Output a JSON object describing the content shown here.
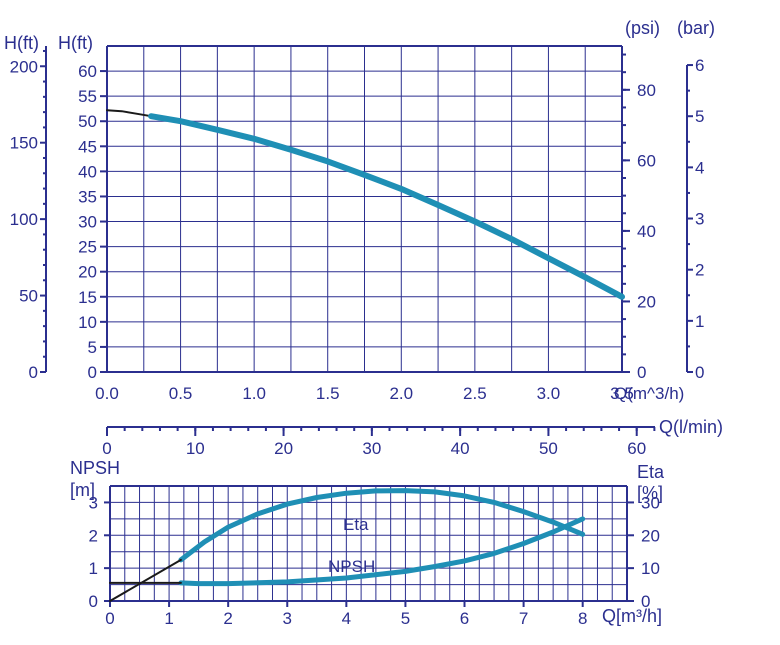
{
  "colors": {
    "axis": "#2b2f8f",
    "curve": "#1f8fb5",
    "extension": "#1a1a1a"
  },
  "chart_data": [
    {
      "type": "line",
      "title": "",
      "xlabel": "Q(m^3/h)",
      "x_ticks": [
        "0.0",
        "0.5",
        "1.0",
        "1.5",
        "2.0",
        "2.5",
        "3.0",
        "3.5"
      ],
      "xlim": [
        0,
        3.5
      ],
      "ylabel_left_ft": "H(ft)",
      "ylabel_left_ft_ticks": [
        "0",
        "50",
        "100",
        "150",
        "200"
      ],
      "ylabel_left_ft2": "H(ft)",
      "ylabel_left_ft2_ticks": [
        "0",
        "5",
        "10",
        "15",
        "20",
        "25",
        "30",
        "35",
        "40",
        "45",
        "50",
        "55",
        "60"
      ],
      "ylim_ft": [
        0,
        65
      ],
      "ylabel_psi": "(psi)",
      "y_psi_ticks": [
        "0",
        "20",
        "40",
        "60",
        "80"
      ],
      "ylabel_bar": "(bar)",
      "y_bar_ticks": [
        "0",
        "1",
        "2",
        "3",
        "4",
        "5",
        "6"
      ],
      "secondary_x_label": "Q(l/min)",
      "secondary_x_ticks": [
        "0",
        "10",
        "20",
        "30",
        "40",
        "50",
        "60"
      ],
      "series": [
        {
          "role": "extension",
          "x": [
            0.0,
            0.1,
            0.2,
            0.3
          ],
          "y": [
            52.2,
            52.0,
            51.5,
            51.0
          ]
        },
        {
          "role": "curve",
          "x": [
            0.3,
            0.5,
            0.75,
            1.0,
            1.25,
            1.5,
            1.75,
            2.0,
            2.25,
            2.5,
            2.75,
            3.0,
            3.25,
            3.5
          ],
          "y": [
            51.0,
            50.0,
            48.3,
            46.5,
            44.3,
            42.0,
            39.3,
            36.5,
            33.3,
            30.0,
            26.5,
            22.7,
            18.9,
            15.0
          ]
        }
      ]
    },
    {
      "type": "line",
      "title": "",
      "xlabel": "Q[m³/h]",
      "x_ticks": [
        "0",
        "1",
        "2",
        "3",
        "4",
        "5",
        "6",
        "7",
        "8"
      ],
      "xlim": [
        0,
        8
      ],
      "ylabel_left": "NPSH\n[m]",
      "ylabel_left_line1": "NPSH",
      "ylabel_left_line2": "[m]",
      "y_left_ticks": [
        "0",
        "1",
        "2",
        "3"
      ],
      "ylim_left": [
        0,
        3.5
      ],
      "ylabel_right_line1": "Eta",
      "ylabel_right_line2": "[%]",
      "y_right_ticks": [
        "0",
        "10",
        "20",
        "30"
      ],
      "ylim_right": [
        0,
        35
      ],
      "annotations": [
        "Eta",
        "NPSH"
      ],
      "series": [
        {
          "name": "Eta",
          "role": "curve",
          "axis": "right",
          "x": [
            1.2,
            1.6,
            2.0,
            2.5,
            3.0,
            3.5,
            4.0,
            4.5,
            5.0,
            5.5,
            6.0,
            6.5,
            7.0,
            7.5,
            8.0
          ],
          "y": [
            12.5,
            18.0,
            22.5,
            26.5,
            29.5,
            31.5,
            32.8,
            33.5,
            33.6,
            33.2,
            32.0,
            30.0,
            27.2,
            24.0,
            20.3
          ]
        },
        {
          "name": "Eta extension",
          "role": "extension",
          "axis": "right",
          "x": [
            0.0,
            1.2
          ],
          "y": [
            0.0,
            12.5
          ]
        },
        {
          "name": "NPSH",
          "role": "curve",
          "axis": "left",
          "x": [
            1.2,
            1.5,
            2.0,
            3.0,
            4.0,
            5.0,
            5.5,
            6.0,
            6.5,
            7.0,
            7.5,
            8.0
          ],
          "y": [
            0.55,
            0.53,
            0.53,
            0.58,
            0.7,
            0.9,
            1.05,
            1.22,
            1.45,
            1.75,
            2.1,
            2.5
          ]
        },
        {
          "name": "NPSH extension",
          "role": "extension",
          "axis": "left",
          "x": [
            0.0,
            1.2
          ],
          "y": [
            0.55,
            0.55
          ]
        }
      ]
    }
  ]
}
